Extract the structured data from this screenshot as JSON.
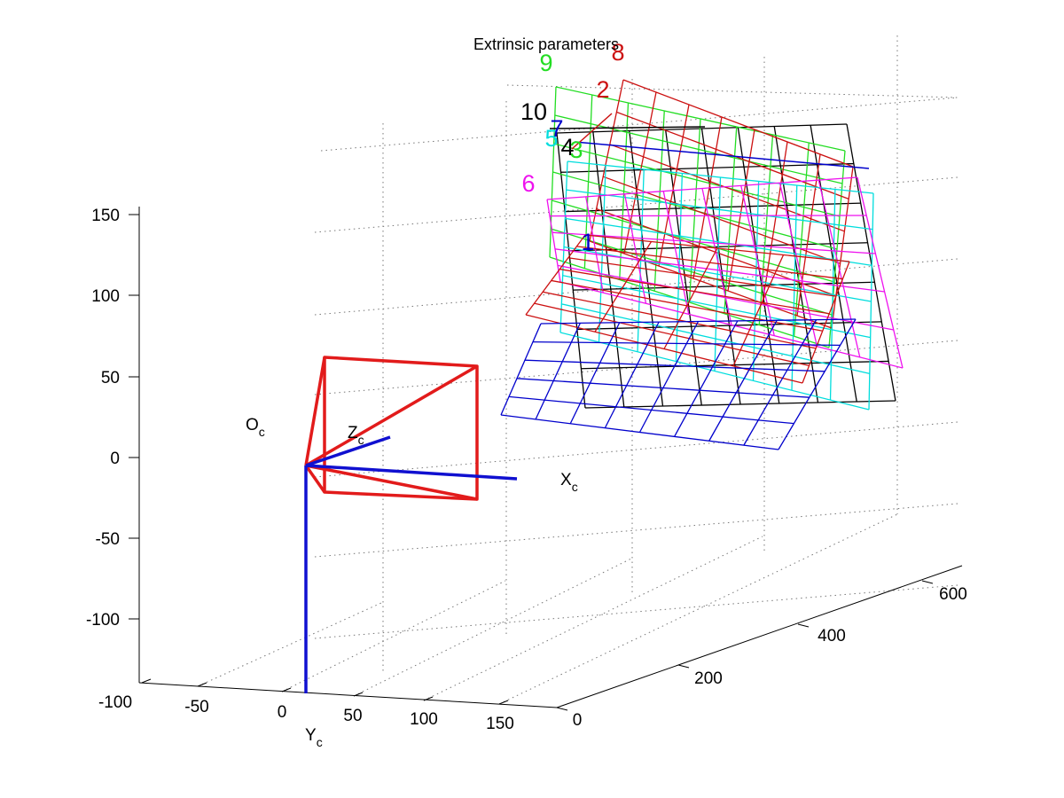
{
  "chart_data": {
    "type": "3d-wireframe",
    "title": "Extrinsic parameters",
    "z_ticks": [
      "150",
      "100",
      "50",
      "0",
      "-50",
      "-100"
    ],
    "x_ticks": [
      "-100",
      "-50",
      "0",
      "50",
      "100",
      "150"
    ],
    "depth_ticks": [
      "0",
      "200",
      "400",
      "600"
    ],
    "camera_labels": {
      "origin": {
        "main": "O",
        "sub": "c"
      },
      "x": {
        "main": "X",
        "sub": "c"
      },
      "y": {
        "main": "Y",
        "sub": "c"
      },
      "z": {
        "main": "Z",
        "sub": "c"
      }
    },
    "grid": true,
    "colors": {
      "camera_frustum": "#e21b1b",
      "camera_axes": "#1010d0",
      "grid": "#777777"
    },
    "planes": [
      {
        "name": "1",
        "color": "#0000cc"
      },
      {
        "name": "2",
        "color": "#cc1111"
      },
      {
        "name": "3",
        "color": "#22dd22"
      },
      {
        "name": "4",
        "color": "#000000"
      },
      {
        "name": "5",
        "color": "#00dddd"
      },
      {
        "name": "6",
        "color": "#ee11ee"
      },
      {
        "name": "7",
        "color": "#0000cc"
      },
      {
        "name": "8",
        "color": "#cc1111"
      },
      {
        "name": "9",
        "color": "#22dd22"
      },
      {
        "name": "10",
        "color": "#000000"
      }
    ]
  }
}
